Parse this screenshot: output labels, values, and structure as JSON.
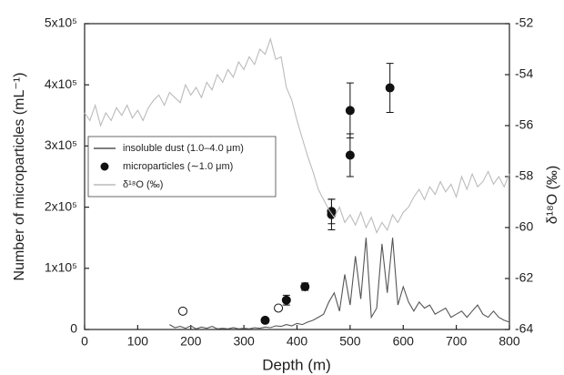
{
  "chart_data": {
    "type": "line_scatter",
    "xlabel": "Depth (m)",
    "ylabel": "Number of microparticles (mL⁻¹)",
    "y2label": "δ¹⁸O (‰)",
    "xlim": [
      0,
      800
    ],
    "xticks": [
      0,
      100,
      200,
      300,
      400,
      500,
      600,
      700,
      800
    ],
    "ylim": [
      0,
      500000
    ],
    "yticks": [
      0,
      {
        "value": 100000,
        "label": "1x10⁵"
      },
      {
        "value": 200000,
        "label": "2x10⁵"
      },
      {
        "value": 300000,
        "label": "3x10⁵"
      },
      {
        "value": 400000,
        "label": "4x10⁵"
      },
      {
        "value": 500000,
        "label": "5x10⁵"
      }
    ],
    "y2lim": [
      -64,
      -52
    ],
    "y2ticks": [
      -64,
      -62,
      -60,
      -58,
      -56,
      -54,
      -52
    ],
    "legend": "middle-left",
    "series": [
      {
        "name": "insoluble dust (1.0–4.0 μm)",
        "kind": "line",
        "color": "#555555",
        "x": [
          160,
          170,
          180,
          190,
          200,
          210,
          220,
          230,
          240,
          250,
          260,
          270,
          280,
          290,
          300,
          310,
          320,
          330,
          340,
          350,
          360,
          370,
          380,
          390,
          400,
          410,
          420,
          430,
          440,
          450,
          460,
          470,
          480,
          490,
          500,
          510,
          520,
          530,
          540,
          550,
          560,
          570,
          580,
          590,
          600,
          610,
          620,
          630,
          640,
          650,
          660,
          670,
          680,
          690,
          700,
          710,
          720,
          730,
          740,
          750,
          760,
          770,
          780,
          790,
          800
        ],
        "values": [
          8000,
          3000,
          5000,
          2000,
          6000,
          1000,
          4000,
          2000,
          5000,
          1000,
          2000,
          1000,
          3000,
          1000,
          2000,
          1000,
          3000,
          2000,
          4000,
          3000,
          6000,
          5000,
          8000,
          6000,
          10000,
          8000,
          12000,
          15000,
          20000,
          25000,
          45000,
          60000,
          30000,
          90000,
          40000,
          120000,
          50000,
          150000,
          20000,
          35000,
          140000,
          60000,
          150000,
          40000,
          70000,
          45000,
          30000,
          45000,
          35000,
          40000,
          25000,
          30000,
          35000,
          20000,
          25000,
          30000,
          20000,
          30000,
          40000,
          25000,
          20000,
          30000,
          20000,
          15000,
          12000
        ]
      },
      {
        "name": "microparticles (∼1.0 μm)",
        "kind": "scatter",
        "color": "#111111",
        "x": [
          340,
          380,
          415,
          465,
          465,
          500,
          500,
          575
        ],
        "values": [
          15000,
          48000,
          70000,
          188000,
          193000,
          285000,
          358000,
          395000
        ],
        "errors": [
          4000,
          8000,
          6000,
          25000,
          20000,
          35000,
          45000,
          40000
        ]
      },
      {
        "kind": "scatter-open",
        "color": "#111111",
        "x": [
          185,
          365
        ],
        "values": [
          30000,
          35000
        ]
      },
      {
        "name": "δ¹⁸O (‰)",
        "kind": "line",
        "axis": "y2",
        "color": "#bbbbbb",
        "x": [
          0,
          10,
          20,
          30,
          40,
          50,
          60,
          70,
          80,
          90,
          100,
          110,
          120,
          130,
          140,
          150,
          160,
          170,
          180,
          190,
          200,
          210,
          220,
          230,
          240,
          250,
          260,
          270,
          280,
          290,
          300,
          310,
          320,
          330,
          340,
          350,
          360,
          370,
          380,
          390,
          400,
          410,
          420,
          430,
          440,
          450,
          460,
          470,
          480,
          490,
          500,
          510,
          520,
          530,
          540,
          550,
          560,
          570,
          580,
          590,
          600,
          610,
          620,
          630,
          640,
          650,
          660,
          670,
          680,
          690,
          700,
          710,
          720,
          730,
          740,
          750,
          760,
          770,
          780,
          790,
          800
        ],
        "values": [
          -55.5,
          -55.8,
          -55.2,
          -56,
          -55.5,
          -55.8,
          -55.3,
          -55.6,
          -55.2,
          -55.7,
          -55.4,
          -55.8,
          -55.3,
          -55,
          -54.8,
          -55.2,
          -54.7,
          -54.9,
          -55.1,
          -54.4,
          -54.8,
          -54.5,
          -54.9,
          -54.3,
          -54.6,
          -54,
          -54.3,
          -53.8,
          -54.1,
          -53.5,
          -53.8,
          -53.3,
          -53.6,
          -53,
          -53.2,
          -52.6,
          -53.4,
          -53.3,
          -54.5,
          -55,
          -55.8,
          -56.5,
          -57.2,
          -57.8,
          -58.5,
          -58.9,
          -59.3,
          -59.6,
          -59.2,
          -59.8,
          -59.5,
          -59.9,
          -59.4,
          -60,
          -59.6,
          -60.2,
          -59.8,
          -60.1,
          -59.5,
          -59.8,
          -59.4,
          -59.2,
          -58.8,
          -58.5,
          -58.9,
          -58.4,
          -58.7,
          -58.2,
          -58.6,
          -58.3,
          -58.8,
          -58,
          -58.5,
          -57.9,
          -58.4,
          -58.2,
          -57.8,
          -58.3,
          -58,
          -58.4,
          -57.9
        ]
      }
    ]
  }
}
